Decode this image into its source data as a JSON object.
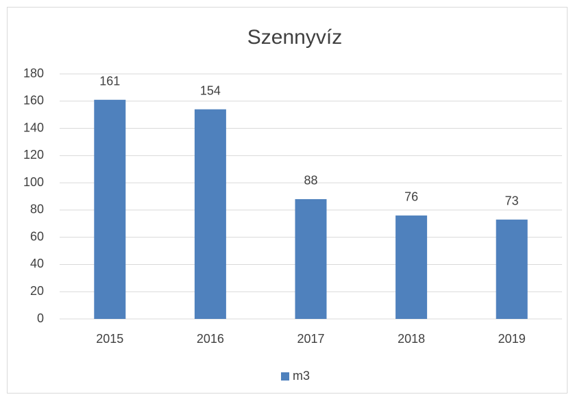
{
  "chart_data": {
    "type": "bar",
    "title": "Szennyvíz",
    "categories": [
      "2015",
      "2016",
      "2017",
      "2018",
      "2019"
    ],
    "series": [
      {
        "name": "m3",
        "color": "#4f81bd",
        "values": [
          161,
          154,
          88,
          76,
          73
        ]
      }
    ],
    "ylim": [
      0,
      180
    ],
    "yticks": [
      0,
      20,
      40,
      60,
      80,
      100,
      120,
      140,
      160,
      180
    ],
    "grid": true,
    "legend": "bottom"
  }
}
